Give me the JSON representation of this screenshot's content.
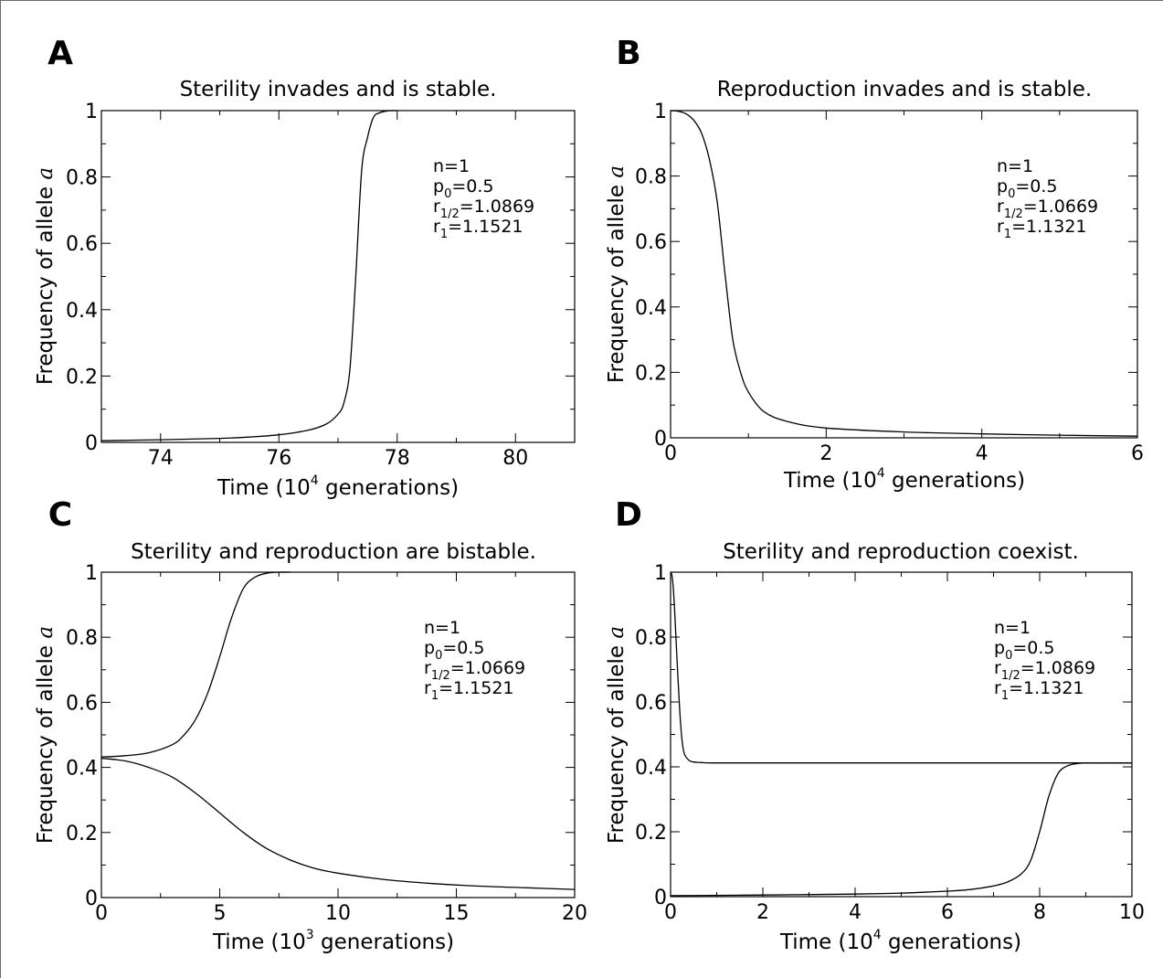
{
  "chart_data": [
    {
      "panel": "A",
      "type": "line",
      "title": "Sterility invades and is stable.",
      "xlabel": {
        "pre": "Time (10",
        "sup": "4",
        "post": " generations)"
      },
      "ylabel": {
        "pre": "Frequency of allele ",
        "it": "a"
      },
      "xlim": [
        73,
        81
      ],
      "ylim": [
        0,
        1
      ],
      "xticks": [
        74,
        76,
        78,
        80
      ],
      "yticks": [
        0,
        0.2,
        0.4,
        0.6,
        0.8,
        1
      ],
      "annotation": [
        {
          "base": "n",
          "sub": "",
          "val": "=1"
        },
        {
          "base": "p",
          "sub": "0",
          "val": "=0.5"
        },
        {
          "base": "r",
          "sub": "1/2",
          "val": "=1.0869"
        },
        {
          "base": "r",
          "sub": "1",
          "val": "=1.1521"
        }
      ],
      "series": [
        {
          "x": [
            73,
            74,
            75,
            75.5,
            76,
            76.5,
            76.8,
            77.0,
            77.1,
            77.2,
            77.3,
            77.4,
            77.5,
            77.6,
            77.7,
            77.8,
            77.9,
            78.0
          ],
          "y": [
            0.005,
            0.008,
            0.012,
            0.016,
            0.023,
            0.037,
            0.055,
            0.085,
            0.12,
            0.22,
            0.5,
            0.82,
            0.92,
            0.98,
            0.993,
            0.998,
            1.0,
            1.0
          ]
        }
      ]
    },
    {
      "panel": "B",
      "type": "line",
      "title": "Reproduction invades and is stable.",
      "xlabel": {
        "pre": "Time (10",
        "sup": "4",
        "post": " generations)"
      },
      "ylabel": {
        "pre": "Frequency of allele ",
        "it": "a"
      },
      "xlim": [
        0,
        6
      ],
      "ylim": [
        0,
        1
      ],
      "xticks": [
        0,
        2,
        4,
        6
      ],
      "yticks": [
        0,
        0.2,
        0.4,
        0.6,
        0.8,
        1
      ],
      "annotation": [
        {
          "base": "n",
          "sub": "",
          "val": "=1"
        },
        {
          "base": "p",
          "sub": "0",
          "val": "=0.5"
        },
        {
          "base": "r",
          "sub": "1/2",
          "val": "=1.0669"
        },
        {
          "base": "r",
          "sub": "1",
          "val": "=1.1321"
        }
      ],
      "series": [
        {
          "x": [
            0,
            0.1,
            0.2,
            0.3,
            0.4,
            0.5,
            0.6,
            0.7,
            0.8,
            0.9,
            1.0,
            1.2,
            1.5,
            2.0,
            3.0,
            4.0,
            5.0,
            6.0
          ],
          "y": [
            1.0,
            0.998,
            0.99,
            0.97,
            0.93,
            0.85,
            0.72,
            0.5,
            0.3,
            0.2,
            0.14,
            0.08,
            0.05,
            0.03,
            0.018,
            0.012,
            0.008,
            0.005
          ]
        }
      ]
    },
    {
      "panel": "C",
      "type": "line",
      "title": "Sterility and reproduction are bistable.",
      "xlabel": {
        "pre": "Time (10",
        "sup": "3",
        "post": " generations)"
      },
      "ylabel": {
        "pre": "Frequency of allele ",
        "it": "a"
      },
      "xlim": [
        0,
        20
      ],
      "ylim": [
        0,
        1
      ],
      "xticks": [
        0,
        5,
        10,
        15,
        20
      ],
      "yticks": [
        0,
        0.2,
        0.4,
        0.6,
        0.8,
        1
      ],
      "annotation": [
        {
          "base": "n",
          "sub": "",
          "val": "=1"
        },
        {
          "base": "p",
          "sub": "0",
          "val": "=0.5"
        },
        {
          "base": "r",
          "sub": "1/2",
          "val": "=1.0669"
        },
        {
          "base": "r",
          "sub": "1",
          "val": "=1.1521"
        }
      ],
      "series": [
        {
          "x": [
            0,
            1,
            2,
            3,
            3.5,
            4,
            4.5,
            5,
            5.5,
            6,
            6.5,
            7,
            7.5,
            8
          ],
          "y": [
            0.432,
            0.436,
            0.445,
            0.47,
            0.5,
            0.55,
            0.63,
            0.74,
            0.86,
            0.95,
            0.985,
            0.997,
            1.0,
            1.0
          ]
        },
        {
          "x": [
            0,
            1,
            2,
            3,
            4,
            5,
            6,
            7,
            8,
            9,
            10,
            12,
            14,
            16,
            18,
            20
          ],
          "y": [
            0.428,
            0.42,
            0.4,
            0.37,
            0.32,
            0.26,
            0.2,
            0.15,
            0.115,
            0.09,
            0.075,
            0.055,
            0.043,
            0.035,
            0.03,
            0.025
          ]
        }
      ]
    },
    {
      "panel": "D",
      "type": "line",
      "title": "Sterility and reproduction coexist.",
      "xlabel": {
        "pre": "Time (10",
        "sup": "4",
        "post": " generations)"
      },
      "ylabel": {
        "pre": "Frequency of allele ",
        "it": "a"
      },
      "xlim": [
        0,
        10
      ],
      "ylim": [
        0,
        1
      ],
      "xticks": [
        0,
        2,
        4,
        6,
        8,
        10
      ],
      "yticks": [
        0,
        0.2,
        0.4,
        0.6,
        0.8,
        1
      ],
      "annotation": [
        {
          "base": "n",
          "sub": "",
          "val": "=1"
        },
        {
          "base": "p",
          "sub": "0",
          "val": "=0.5"
        },
        {
          "base": "r",
          "sub": "1/2",
          "val": "=1.0869"
        },
        {
          "base": "r",
          "sub": "1",
          "val": "=1.1321"
        }
      ],
      "series": [
        {
          "x": [
            0,
            0.03,
            0.06,
            0.1,
            0.15,
            0.2,
            0.25,
            0.3,
            0.4,
            0.5,
            0.7,
            1.0,
            2,
            4,
            6,
            8,
            10
          ],
          "y": [
            1.0,
            0.99,
            0.95,
            0.85,
            0.7,
            0.57,
            0.48,
            0.44,
            0.42,
            0.415,
            0.413,
            0.412,
            0.412,
            0.412,
            0.412,
            0.412,
            0.412
          ]
        },
        {
          "x": [
            0,
            2,
            4,
            5,
            6,
            6.5,
            7,
            7.3,
            7.6,
            7.8,
            8.0,
            8.2,
            8.4,
            8.6,
            8.8,
            9.0,
            9.5,
            10
          ],
          "y": [
            0.003,
            0.005,
            0.008,
            0.011,
            0.017,
            0.022,
            0.033,
            0.045,
            0.07,
            0.11,
            0.2,
            0.31,
            0.38,
            0.403,
            0.41,
            0.412,
            0.412,
            0.412
          ]
        }
      ]
    }
  ]
}
